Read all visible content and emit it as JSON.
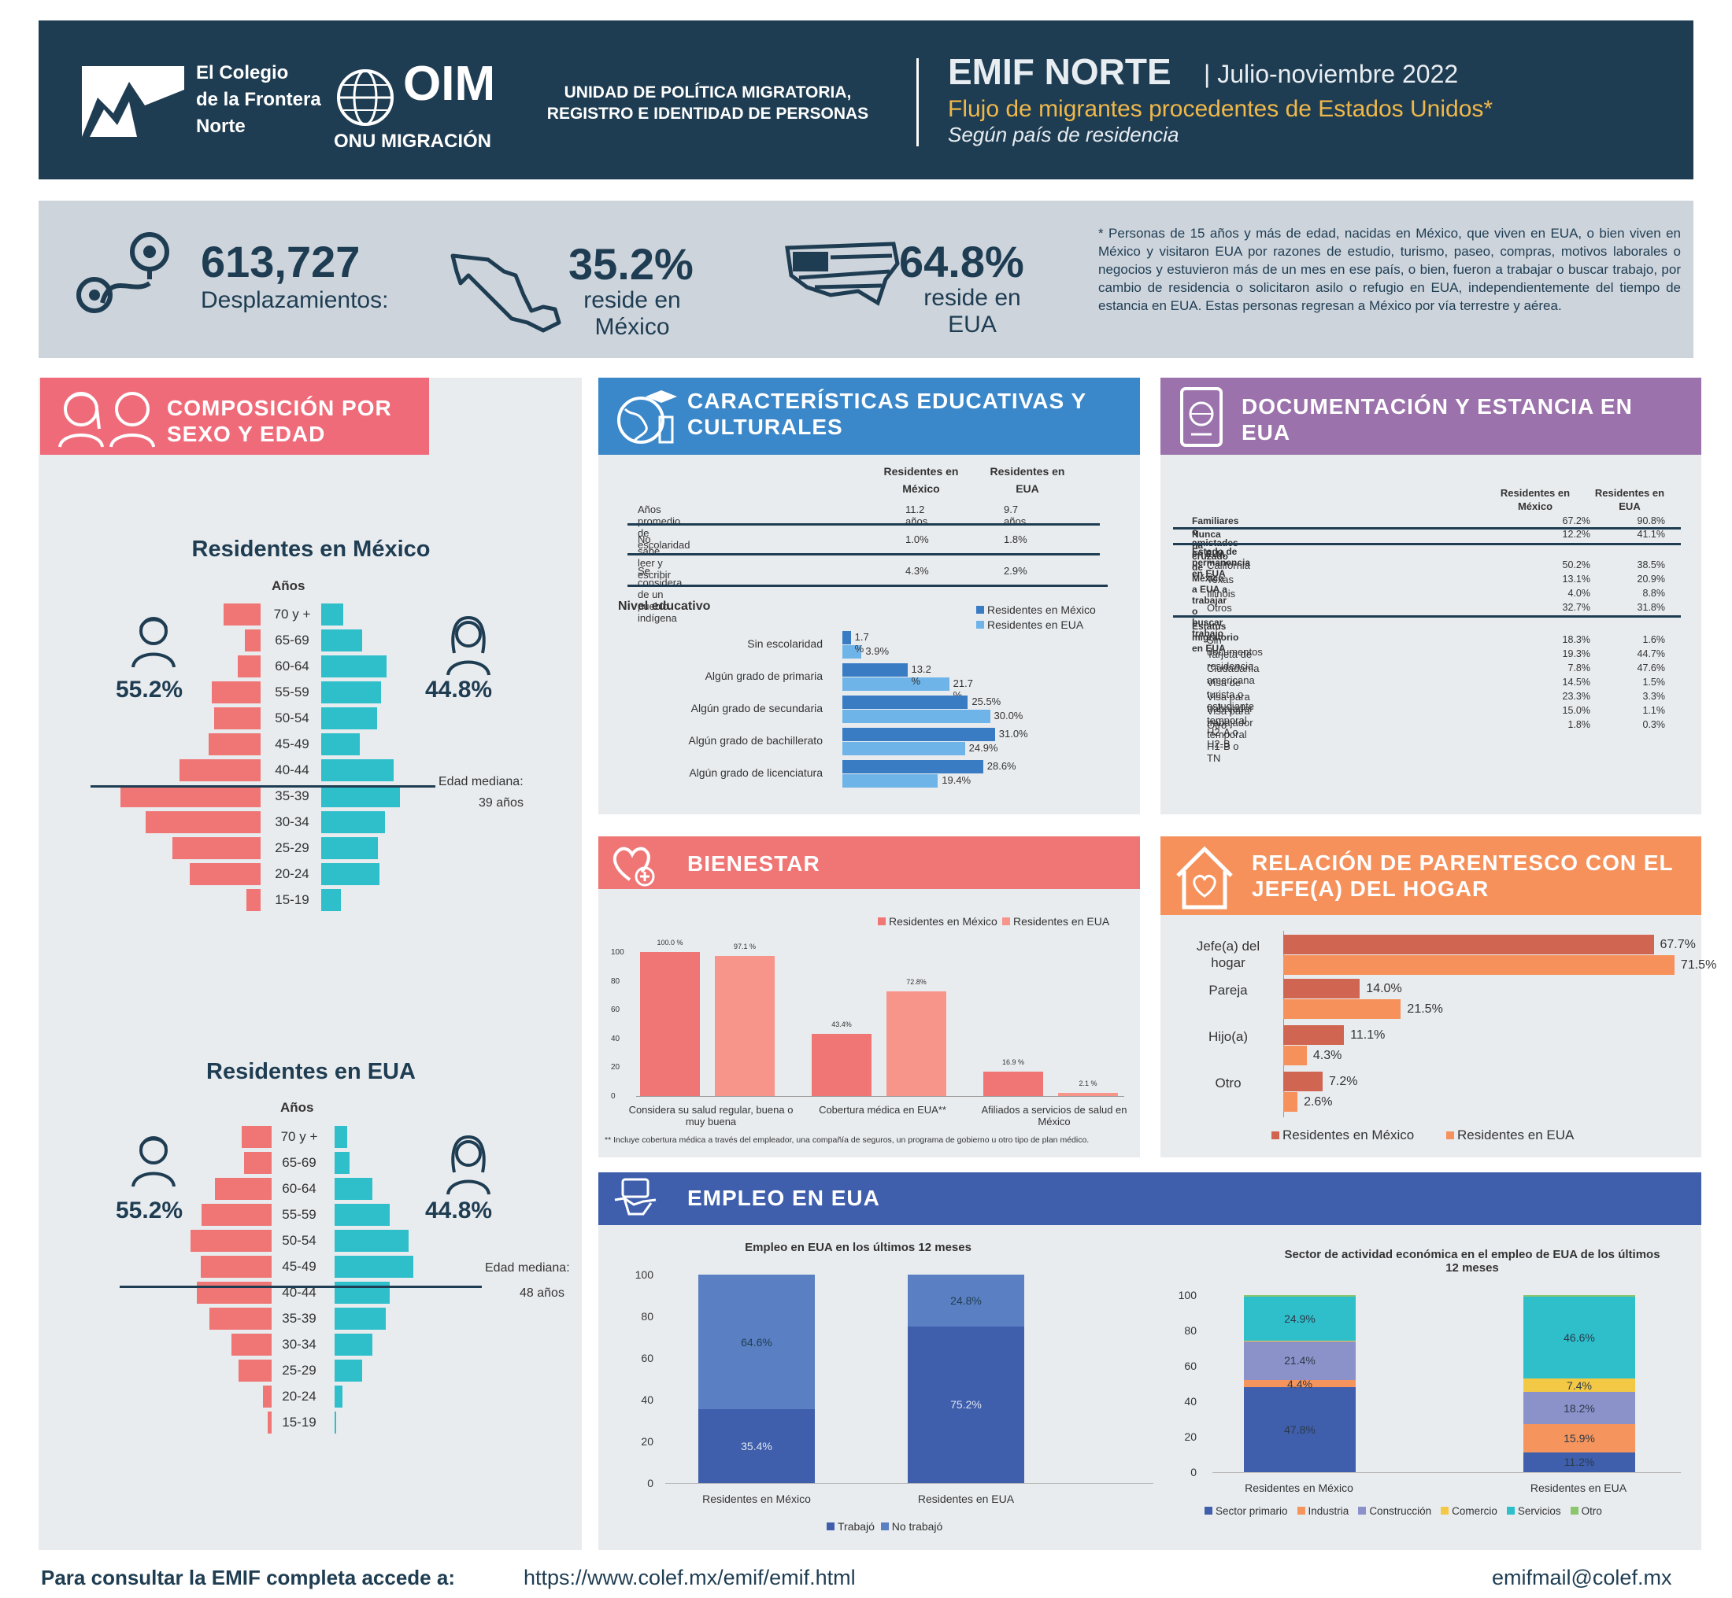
{
  "header": {
    "colef": [
      "El Colegio",
      "de la Frontera",
      "Norte"
    ],
    "oim": "OIM",
    "oim_sub": "ONU MIGRACIÓN",
    "unit": "UNIDAD DE POLÍTICA MIGRATORIA, REGISTRO E IDENTIDAD DE PERSONAS",
    "title": "EMIF NORTE",
    "date": "| Julio-noviembre 2022",
    "subtitle": "Flujo de migrantes procedentes de Estados Unidos*",
    "subtitle2": "Según país de residencia"
  },
  "stats": {
    "total": "613,727",
    "total_label": "Desplazamientos:",
    "mx_pct": "35.2%",
    "mx_label": "reside en México",
    "us_pct": "64.8%",
    "us_label": "reside en EUA",
    "note": "* Personas de 15 años y más de edad, nacidas en México, que viven en EUA, o bien viven en México y visitaron EUA por razones de estudio, turismo, paseo, compras, motivos laborales o negocios y estuvieron más de un mes en ese país, o bien, fueron a trabajar o buscar trabajo, por cambio de residencia o solicitaron asilo o refugio en EUA, independientemente del tiempo de estancia en EUA. Estas personas regresan a México por vía terrestre y aérea."
  },
  "sex": {
    "title": "COMPOSICIÓN POR SEXO Y EDAD",
    "mx_title": "Residentes en México",
    "us_title": "Residentes en EUA",
    "years": "Años",
    "male_pct": "55.2%",
    "female_pct": "44.8%",
    "mx_median": "Edad mediana:",
    "mx_median_val": "39 años",
    "us_median": "Edad mediana:",
    "us_median_val": "48 años",
    "ages": [
      "70 y +",
      "65-69",
      "60-64",
      "55-59",
      "50-54",
      "45-49",
      "40-44",
      "35-39",
      "30-34",
      "25-29",
      "20-24",
      "15-19"
    ],
    "mx_male": [
      4.1,
      1.7,
      2.5,
      5.4,
      5.1,
      5.7,
      9.0,
      15.5,
      12.7,
      9.7,
      7.8,
      1.6
    ],
    "mx_female": [
      2.4,
      4.5,
      7.2,
      6.6,
      6.2,
      4.3,
      8.0,
      8.7,
      7.0,
      6.3,
      6.4,
      2.2
    ],
    "us_male": [
      4.5,
      4.1,
      8.5,
      10.5,
      12.1,
      10.6,
      11.2,
      9.3,
      6.0,
      5.0,
      1.3,
      0.6
    ],
    "us_female": [
      1.9,
      2.2,
      5.6,
      8.2,
      11.0,
      11.8,
      8.2,
      7.6,
      5.7,
      4.1,
      1.2,
      0.2
    ]
  },
  "edu": {
    "title": "CARACTERÍSTICAS EDUCATIVAS Y CULTURALES",
    "col1": "Residentes en México",
    "col2": "Residentes en EUA",
    "rows": [
      [
        "Años promedio de escolaridad",
        "11.2 años",
        "9.7 años"
      ],
      [
        "No sabe leer y escribir",
        "1.0%",
        "1.8%"
      ],
      [
        "Se considera de un pueblo indígena",
        "4.3%",
        "2.9%"
      ]
    ],
    "level_title": "Nivel educativo",
    "leg_mx": "Residentes en México",
    "leg_us": "Residentes en EUA",
    "levels": [
      "Sin escolaridad",
      "Algún grado de primaria",
      "Algún grado de secundaria",
      "Algún grado de bachillerato",
      "Algún grado de licenciatura"
    ],
    "mx": [
      1.7,
      13.2,
      25.5,
      31.0,
      28.6
    ],
    "us": [
      3.9,
      21.7,
      30.0,
      24.9,
      19.4
    ],
    "mx_lbl": [
      "1.7 %",
      "13.2 %",
      "25.5%",
      "31.0%",
      "28.6%"
    ],
    "us_lbl": [
      "3.9%",
      "21.7 %",
      "30.0%",
      "24.9%",
      "19.4%"
    ]
  },
  "doc": {
    "title": "DOCUMENTACIÓN Y ESTANCIA EN EUA",
    "col1": "Residentes en México",
    "col2": "Residentes en EUA",
    "rows": [
      [
        "Familiares o amistades en EUA",
        "67.2%",
        "90.8%",
        "b"
      ],
      [
        "Nunca ha cruzado de México a EUA a trabajar o buscar trabajo",
        "12.2%",
        "41.1%",
        "b"
      ],
      [
        "Estado de permanencia en EUA",
        "",
        "",
        "h"
      ],
      [
        "California",
        "50.2%",
        "38.5%",
        ""
      ],
      [
        "Texas",
        "13.1%",
        "20.9%",
        ""
      ],
      [
        "Illinois",
        "4.0%",
        "8.8%",
        ""
      ],
      [
        "Otros",
        "32.7%",
        "31.8%",
        ""
      ],
      [
        "Estatus migratorio en EUA",
        "",
        "",
        "h"
      ],
      [
        "Sin documentos",
        "18.3%",
        "1.6%",
        ""
      ],
      [
        "Tarjeta de residencia",
        "19.3%",
        "44.7%",
        ""
      ],
      [
        "Ciudadanía americana",
        "7.8%",
        "47.6%",
        ""
      ],
      [
        "Visa de turista o estudiante",
        "14.5%",
        "1.5%",
        ""
      ],
      [
        "Visa para trabajador temporal H2-A o H2-B",
        "23.3%",
        "3.3%",
        ""
      ],
      [
        "Visa para trabajador temporal H1-B o TN",
        "15.0%",
        "1.1%",
        ""
      ],
      [
        "Otro",
        "1.8%",
        "0.3%",
        ""
      ]
    ]
  },
  "bien": {
    "title": "BIENESTAR",
    "leg_mx": "Residentes en México",
    "leg_us": "Residentes en EUA",
    "cats": [
      "Considera su salud regular, buena o muy buena",
      "Cobertura médica en EUA**",
      "Afiliados a servicios de salud en México"
    ],
    "mx": [
      100.0,
      43.4,
      16.9
    ],
    "us": [
      97.1,
      72.8,
      2.1
    ],
    "mx_lbl": [
      "100.0 %",
      "43.4%",
      "16.9 %"
    ],
    "us_lbl": [
      "97.1 %",
      "72.8%",
      "2.1 %"
    ],
    "yticks": [
      "100",
      "80",
      "60",
      "40",
      "20",
      "0"
    ],
    "note": "** Incluye cobertura médica a través del empleador, una compañía de seguros, un programa de gobierno u otro tipo de plan médico."
  },
  "paren": {
    "title": "RELACIÓN DE PARENTESCO CON EL JEFE(A) DEL HOGAR",
    "cats": [
      "Jefe(a) del hogar",
      "Pareja",
      "Hijo(a)",
      "Otro"
    ],
    "mx": [
      67.7,
      14.0,
      11.1,
      7.2
    ],
    "us": [
      71.5,
      21.5,
      4.3,
      2.6
    ],
    "mx_lbl": [
      "67.7%",
      "14.0%",
      "11.1%",
      "7.2%"
    ],
    "us_lbl": [
      "71.5%",
      "21.5%",
      "4.3%",
      "2.6%"
    ],
    "leg_mx": "Residentes en México",
    "leg_us": "Residentes en EUA"
  },
  "empleo": {
    "title": "EMPLEO EN EUA",
    "c1_title": "Empleo en EUA en los últimos 12 meses",
    "c1_cats": [
      "Residentes en México",
      "Residentes en EUA"
    ],
    "c1_trab": [
      35.4,
      75.2
    ],
    "c1_no": [
      64.6,
      24.8
    ],
    "c1_trab_lbl": [
      "35.4%",
      "75.2%"
    ],
    "c1_no_lbl": [
      "64.6%",
      "24.8%"
    ],
    "c1_leg": [
      "Trabajó",
      "No trabajó"
    ],
    "yticks": [
      "100",
      "80",
      "60",
      "40",
      "20",
      "0"
    ],
    "c2_title": "Sector de actividad económica en el empleo de EUA de los últimos 12 meses",
    "c2_cats": [
      "Residentes en México",
      "Residentes en EUA"
    ],
    "c2_series": [
      {
        "name": "Sector primario",
        "values": [
          47.8,
          11.2
        ],
        "color": "#3f5fad"
      },
      {
        "name": "Industria",
        "values": [
          4.4,
          15.9
        ],
        "color": "#f5945c"
      },
      {
        "name": "Construcción",
        "values": [
          21.4,
          18.2
        ],
        "color": "#8a92c9"
      },
      {
        "name": "Comercio",
        "values": [
          0.5,
          7.4
        ],
        "color": "#f3c845"
      },
      {
        "name": "Servicios",
        "values": [
          24.9,
          46.6
        ],
        "color": "#2ebfcb"
      },
      {
        "name": "Otro",
        "values": [
          1.0,
          0.7
        ],
        "color": "#8cc66c"
      }
    ],
    "c2_lbls": [
      [
        "47.8%",
        "4.4%",
        "21.4%",
        "",
        "24.9%",
        ""
      ],
      [
        "11.2%",
        "15.9%",
        "18.2%",
        "7.4%",
        "46.6%",
        ""
      ]
    ]
  },
  "footer": {
    "text": "Para consultar la EMIF completa accede a:",
    "url": "https://www.colef.mx/emif/emif.html",
    "email": "emifmail@colef.mx"
  },
  "chart_data": [
    {
      "type": "bar",
      "title": "Nivel educativo",
      "categories": [
        "Sin escolaridad",
        "Algún grado de primaria",
        "Algún grado de secundaria",
        "Algún grado de bachillerato",
        "Algún grado de licenciatura"
      ],
      "series": [
        {
          "name": "Residentes en México",
          "values": [
            1.7,
            13.2,
            25.5,
            31.0,
            28.6
          ]
        },
        {
          "name": "Residentes en EUA",
          "values": [
            3.9,
            21.7,
            30.0,
            24.9,
            19.4
          ]
        }
      ]
    },
    {
      "type": "bar",
      "title": "BIENESTAR",
      "categories": [
        "Considera su salud regular, buena o muy buena",
        "Cobertura médica en EUA**",
        "Afiliados a servicios de salud en México"
      ],
      "series": [
        {
          "name": "Residentes en México",
          "values": [
            100.0,
            43.4,
            16.9
          ]
        },
        {
          "name": "Residentes en EUA",
          "values": [
            97.1,
            72.8,
            2.1
          ]
        }
      ],
      "ylim": [
        0,
        100
      ]
    },
    {
      "type": "bar",
      "title": "RELACIÓN DE PARENTESCO CON EL JEFE(A) DEL HOGAR",
      "categories": [
        "Jefe(a) del hogar",
        "Pareja",
        "Hijo(a)",
        "Otro"
      ],
      "series": [
        {
          "name": "Residentes en México",
          "values": [
            67.7,
            14.0,
            11.1,
            7.2
          ]
        },
        {
          "name": "Residentes en EUA",
          "values": [
            71.5,
            21.5,
            4.3,
            2.6
          ]
        }
      ]
    },
    {
      "type": "bar",
      "title": "Empleo en EUA en los últimos 12 meses",
      "categories": [
        "Residentes en México",
        "Residentes en EUA"
      ],
      "series": [
        {
          "name": "Trabajó",
          "values": [
            35.4,
            75.2
          ]
        },
        {
          "name": "No trabajó",
          "values": [
            64.6,
            24.8
          ]
        }
      ],
      "ylim": [
        0,
        100
      ]
    },
    {
      "type": "bar",
      "title": "Sector de actividad económica en el empleo de EUA de los últimos 12 meses",
      "categories": [
        "Residentes en México",
        "Residentes en EUA"
      ],
      "series": [
        {
          "name": "Sector primario",
          "values": [
            47.8,
            11.2
          ]
        },
        {
          "name": "Industria",
          "values": [
            4.4,
            15.9
          ]
        },
        {
          "name": "Construcción",
          "values": [
            21.4,
            18.2
          ]
        },
        {
          "name": "Comercio",
          "values": [
            0.5,
            7.4
          ]
        },
        {
          "name": "Servicios",
          "values": [
            24.9,
            46.6
          ]
        },
        {
          "name": "Otro",
          "values": [
            1.0,
            0.7
          ]
        }
      ],
      "ylim": [
        0,
        100
      ]
    }
  ]
}
